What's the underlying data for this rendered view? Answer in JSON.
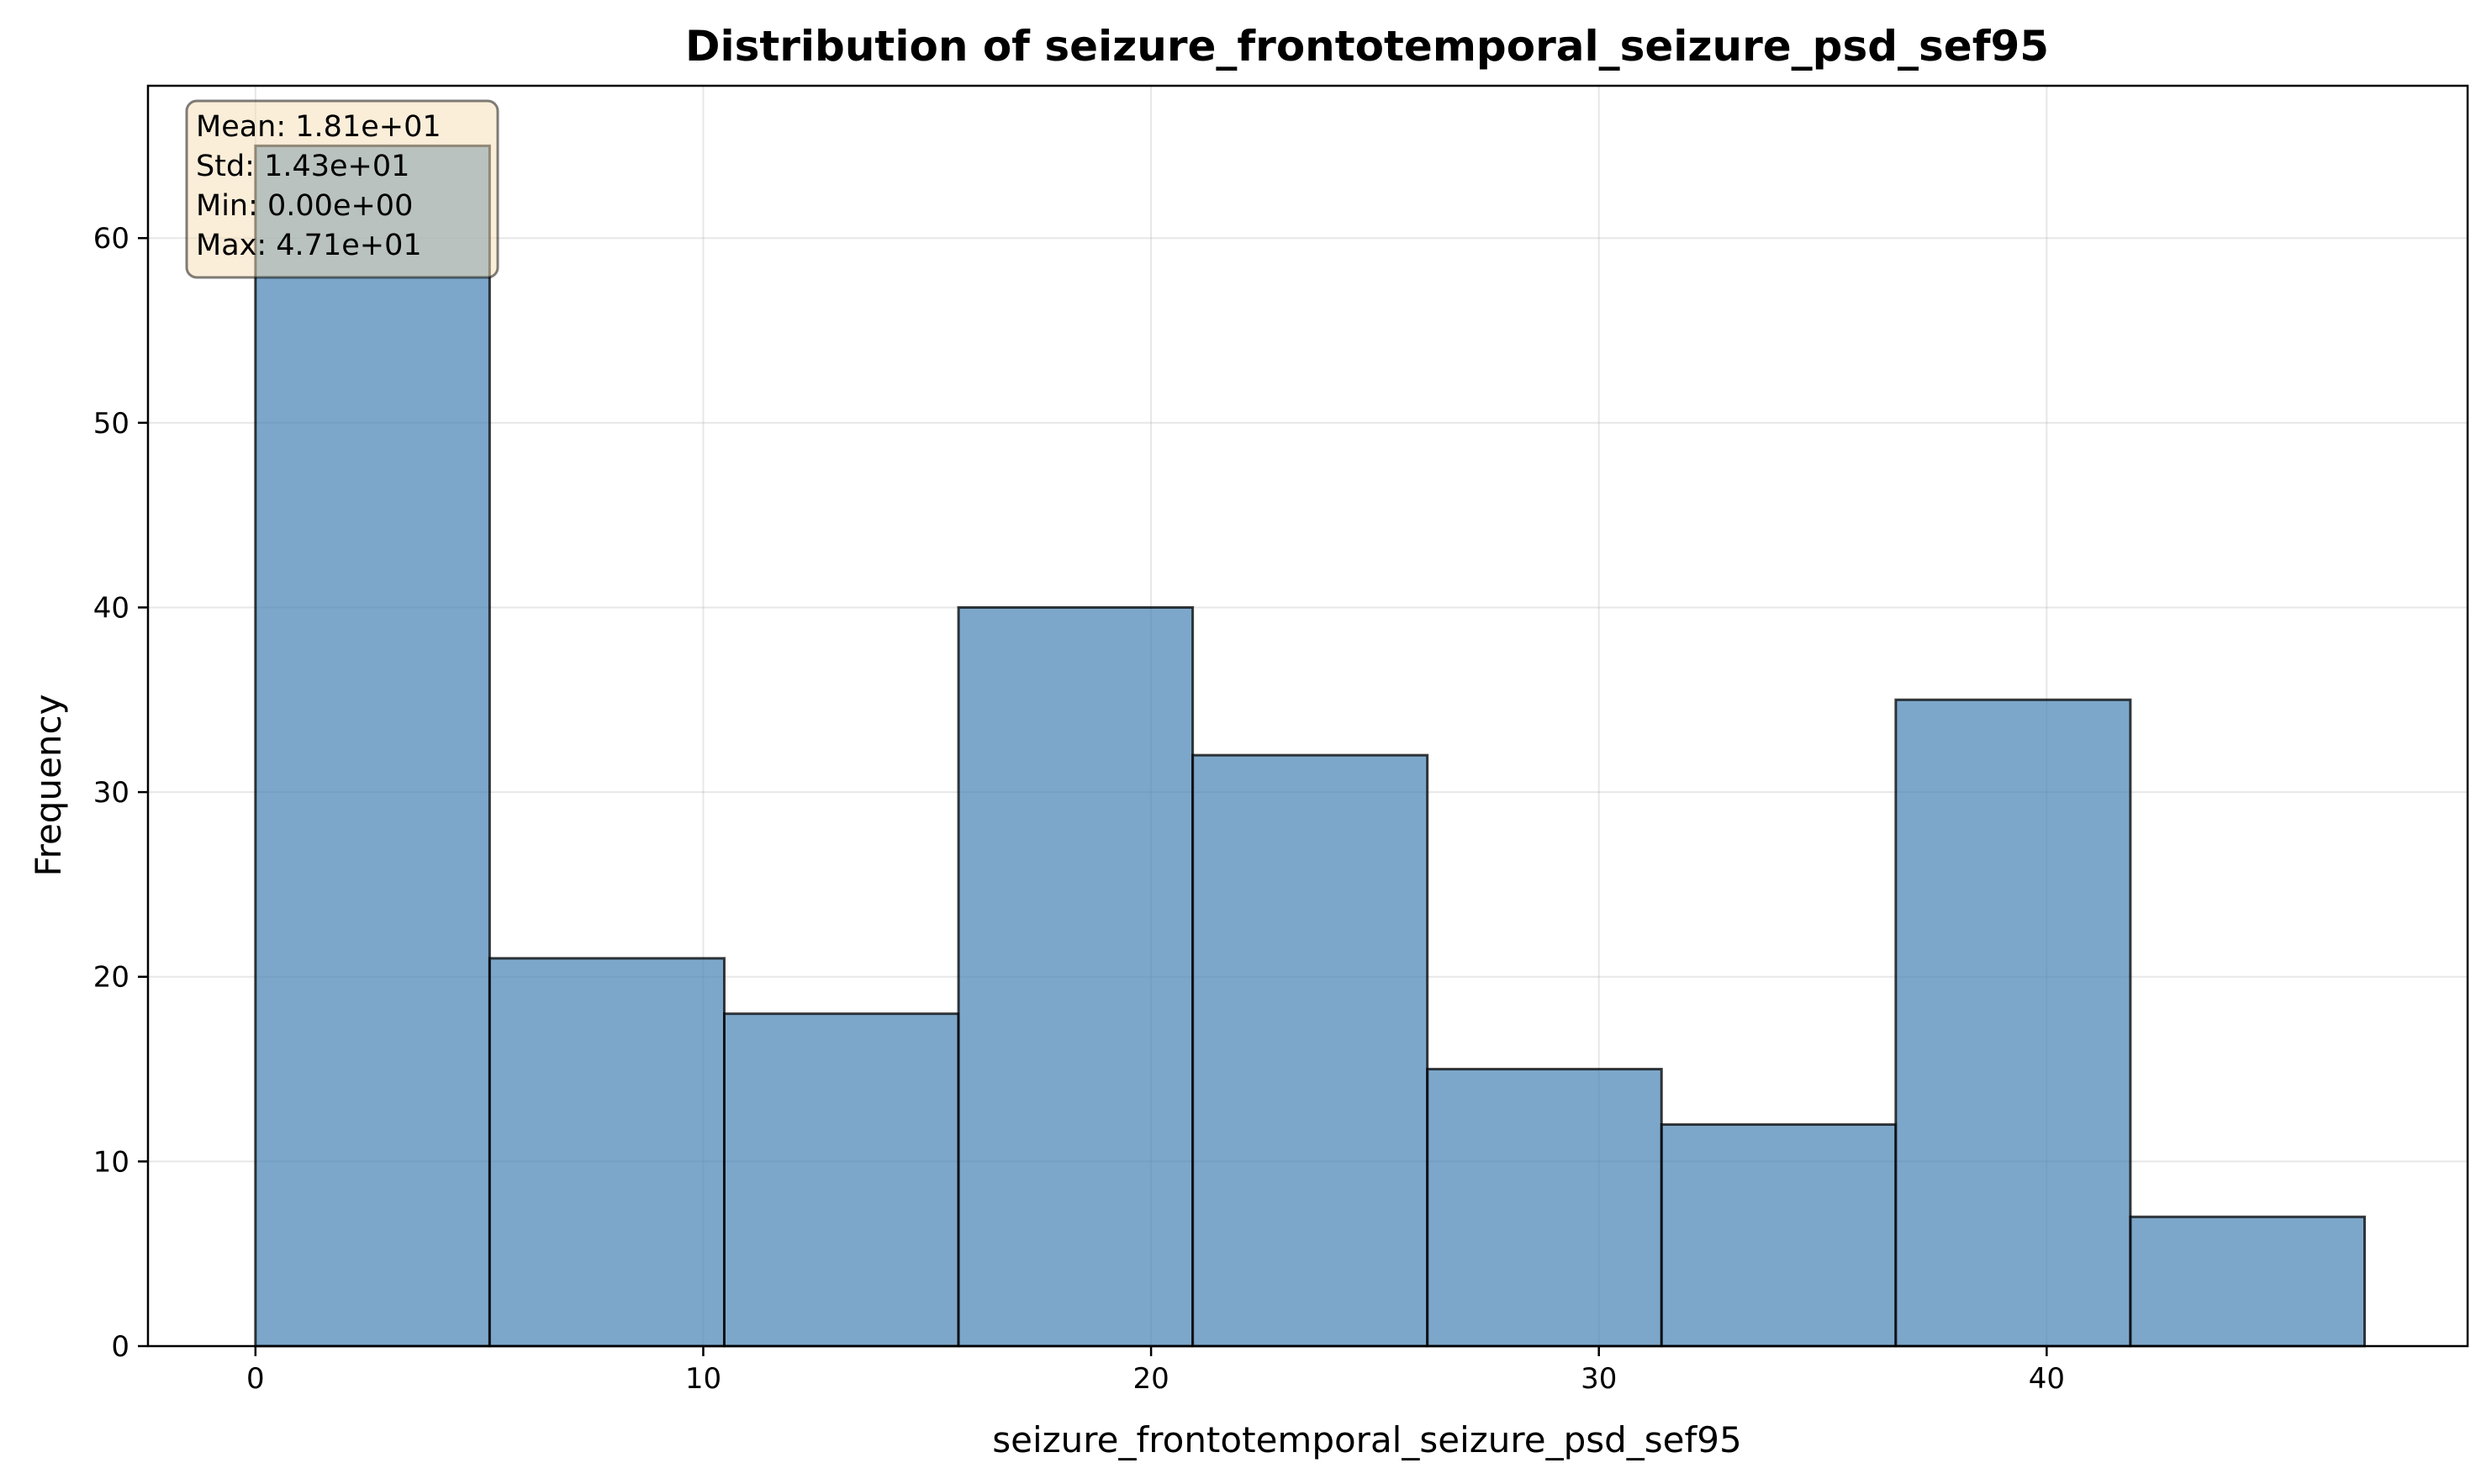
{
  "chart_data": {
    "type": "histogram",
    "title": "Distribution of seizure_frontotemporal_seizure_psd_sef95",
    "xlabel": "seizure_frontotemporal_seizure_psd_sef95",
    "ylabel": "Frequency",
    "xlim": [
      -2.4,
      49.4
    ],
    "ylim": [
      0,
      68.25
    ],
    "xticks": [
      0,
      10,
      20,
      30,
      40
    ],
    "yticks": [
      0,
      10,
      20,
      30,
      40,
      50,
      60
    ],
    "bin_edges": [
      0,
      5.23,
      10.47,
      15.7,
      20.93,
      26.17,
      31.4,
      36.63,
      41.87,
      47.1
    ],
    "values": [
      65,
      21,
      18,
      40,
      32,
      15,
      12,
      35,
      7
    ],
    "grid": true,
    "bar_color": "#4682b4",
    "bar_edge_color": "#000000",
    "stats_box": {
      "lines": [
        "Mean: 1.81e+01",
        "Std: 1.43e+01",
        "Min: 0.00e+00",
        "Max: 4.71e+01"
      ],
      "placement": "top-left",
      "face_color": "#f5deb3"
    }
  }
}
